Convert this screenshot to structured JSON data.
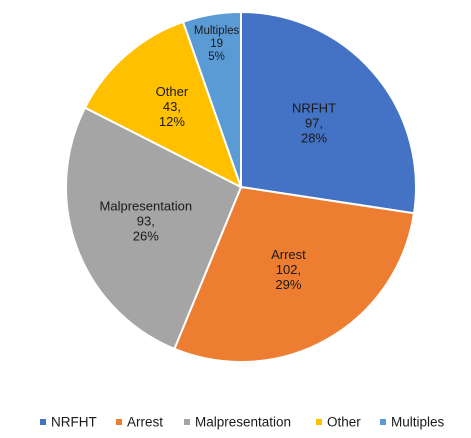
{
  "chart_data": {
    "type": "pie",
    "title": "",
    "slices": [
      {
        "name": "NRFHT",
        "value": 97,
        "percent": "28%",
        "color": "#4472C4"
      },
      {
        "name": "Arrest",
        "value": 102,
        "percent": "29%",
        "color": "#ED7D31"
      },
      {
        "name": "Malpresentation",
        "value": 93,
        "percent": "26%",
        "color": "#A5A5A5"
      },
      {
        "name": "Other",
        "value": 43,
        "percent": "12%",
        "color": "#FFC000"
      },
      {
        "name": "Multiples",
        "value": 19,
        "percent": "5%",
        "color": "#5B9BD5"
      }
    ],
    "legend_position": "bottom"
  }
}
